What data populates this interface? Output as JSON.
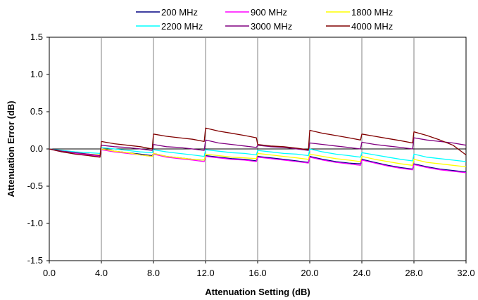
{
  "chart_data": {
    "type": "line",
    "title": "",
    "xlabel": "Attenuation Setting (dB)",
    "ylabel": "Attenuation Error (dB)",
    "xlim": [
      0,
      32
    ],
    "ylim": [
      -1.5,
      1.5
    ],
    "x_ticks": [
      "0.0",
      "4.0",
      "8.0",
      "12.0",
      "16.0",
      "20.0",
      "24.0",
      "28.0",
      "32.0"
    ],
    "y_ticks": [
      "1.5",
      "1.0",
      "0.5",
      "0.0",
      "-0.5",
      "-1.0",
      "-1.5"
    ],
    "grid": "vertical",
    "legend_position": "top",
    "series": [
      {
        "name": "200 MHz",
        "color": "#000080",
        "x": [
          0,
          1,
          2,
          3,
          3.9,
          4,
          5,
          6,
          7,
          7.9,
          8,
          9,
          10,
          11,
          11.9,
          12,
          13,
          14,
          15,
          15.9,
          16,
          17,
          18,
          19,
          19.9,
          20,
          21,
          22,
          23,
          23.9,
          24,
          25,
          26,
          27,
          27.9,
          28,
          29,
          30,
          31,
          32
        ],
        "y": [
          0.0,
          -0.04,
          -0.06,
          -0.07,
          -0.09,
          0.0,
          -0.03,
          -0.05,
          -0.07,
          -0.09,
          -0.06,
          -0.1,
          -0.12,
          -0.14,
          -0.15,
          -0.09,
          -0.11,
          -0.13,
          -0.14,
          -0.16,
          -0.1,
          -0.12,
          -0.14,
          -0.16,
          -0.18,
          -0.1,
          -0.14,
          -0.17,
          -0.19,
          -0.2,
          -0.14,
          -0.18,
          -0.22,
          -0.25,
          -0.27,
          -0.2,
          -0.24,
          -0.27,
          -0.29,
          -0.31
        ]
      },
      {
        "name": "900 MHz",
        "color": "#ff00ff",
        "x": [
          0,
          1,
          2,
          3,
          3.9,
          4,
          5,
          6,
          7,
          7.9,
          8,
          9,
          10,
          11,
          11.9,
          12,
          13,
          14,
          15,
          15.9,
          16,
          17,
          18,
          19,
          19.9,
          20,
          21,
          22,
          23,
          23.9,
          24,
          25,
          26,
          27,
          27.9,
          28,
          29,
          30,
          31,
          32
        ],
        "y": [
          0.0,
          -0.04,
          -0.06,
          -0.08,
          -0.1,
          -0.01,
          -0.04,
          -0.06,
          -0.08,
          -0.1,
          -0.07,
          -0.11,
          -0.13,
          -0.15,
          -0.17,
          -0.1,
          -0.12,
          -0.14,
          -0.15,
          -0.17,
          -0.11,
          -0.13,
          -0.15,
          -0.17,
          -0.19,
          -0.11,
          -0.15,
          -0.18,
          -0.2,
          -0.22,
          -0.15,
          -0.19,
          -0.23,
          -0.26,
          -0.28,
          -0.21,
          -0.25,
          -0.28,
          -0.3,
          -0.32
        ]
      },
      {
        "name": "1800 MHz",
        "color": "#ffff00",
        "x": [
          0,
          1,
          2,
          3,
          3.9,
          4,
          5,
          6,
          7,
          7.9,
          8,
          9,
          10,
          11,
          11.9,
          12,
          13,
          14,
          15,
          15.9,
          16,
          17,
          18,
          19,
          19.9,
          20,
          21,
          22,
          23,
          23.9,
          24,
          25,
          26,
          27,
          27.9,
          28,
          29,
          30,
          31,
          32
        ],
        "y": [
          0.0,
          -0.03,
          -0.05,
          -0.07,
          -0.08,
          0.0,
          -0.03,
          -0.05,
          -0.08,
          -0.1,
          -0.06,
          -0.1,
          -0.12,
          -0.14,
          -0.15,
          -0.07,
          -0.09,
          -0.11,
          -0.12,
          -0.13,
          -0.06,
          -0.08,
          -0.1,
          -0.12,
          -0.14,
          -0.07,
          -0.1,
          -0.13,
          -0.15,
          -0.17,
          -0.1,
          -0.14,
          -0.17,
          -0.2,
          -0.22,
          -0.14,
          -0.18,
          -0.2,
          -0.22,
          -0.24
        ]
      },
      {
        "name": "2200 MHz",
        "color": "#00ffff",
        "x": [
          0,
          1,
          2,
          3,
          3.9,
          4,
          5,
          6,
          7,
          7.9,
          8,
          9,
          10,
          11,
          11.9,
          12,
          13,
          14,
          15,
          15.9,
          16,
          17,
          18,
          19,
          19.9,
          20,
          21,
          22,
          23,
          23.9,
          24,
          25,
          26,
          27,
          27.9,
          28,
          29,
          30,
          31,
          32
        ],
        "y": [
          0.0,
          -0.02,
          -0.04,
          -0.05,
          -0.06,
          0.02,
          0.0,
          -0.02,
          -0.04,
          -0.05,
          -0.01,
          -0.04,
          -0.06,
          -0.08,
          -0.1,
          -0.01,
          -0.03,
          -0.05,
          -0.06,
          -0.08,
          -0.02,
          -0.04,
          -0.06,
          -0.07,
          -0.09,
          0.0,
          -0.04,
          -0.07,
          -0.09,
          -0.11,
          -0.05,
          -0.08,
          -0.11,
          -0.14,
          -0.16,
          -0.07,
          -0.11,
          -0.13,
          -0.15,
          -0.17
        ]
      },
      {
        "name": "3000 MHz",
        "color": "#800080",
        "x": [
          0,
          1,
          2,
          3,
          3.9,
          4,
          5,
          6,
          7,
          7.9,
          8,
          9,
          10,
          11,
          11.9,
          12,
          13,
          14,
          15,
          15.9,
          16,
          17,
          18,
          19,
          19.9,
          20,
          21,
          22,
          23,
          23.9,
          24,
          25,
          26,
          27,
          27.9,
          28,
          29,
          30,
          31,
          32
        ],
        "y": [
          0.0,
          -0.03,
          -0.05,
          -0.07,
          -0.09,
          0.05,
          0.03,
          0.02,
          0.0,
          -0.02,
          0.06,
          0.03,
          0.02,
          0.0,
          -0.02,
          0.12,
          0.08,
          0.06,
          0.04,
          0.02,
          0.05,
          0.03,
          0.02,
          0.0,
          -0.02,
          0.08,
          0.06,
          0.04,
          0.02,
          0.0,
          0.09,
          0.06,
          0.04,
          0.02,
          0.0,
          0.15,
          0.12,
          0.1,
          0.08,
          0.05
        ]
      },
      {
        "name": "4000 MHz",
        "color": "#800000",
        "x": [
          0,
          1,
          2,
          3,
          3.9,
          4,
          5,
          6,
          7,
          7.9,
          8,
          9,
          10,
          11,
          11.9,
          12,
          13,
          14,
          15,
          15.9,
          16,
          17,
          18,
          19,
          19.9,
          20,
          21,
          22,
          23,
          23.9,
          24,
          25,
          26,
          27,
          27.9,
          28,
          29,
          30,
          31,
          32
        ],
        "y": [
          0.0,
          -0.04,
          -0.07,
          -0.09,
          -0.11,
          0.1,
          0.07,
          0.05,
          0.03,
          0.0,
          0.2,
          0.17,
          0.15,
          0.13,
          0.1,
          0.28,
          0.24,
          0.21,
          0.18,
          0.15,
          0.06,
          0.04,
          0.03,
          0.01,
          -0.01,
          0.25,
          0.21,
          0.18,
          0.15,
          0.12,
          0.2,
          0.17,
          0.14,
          0.11,
          0.08,
          0.23,
          0.18,
          0.12,
          0.05,
          -0.08
        ]
      }
    ]
  }
}
